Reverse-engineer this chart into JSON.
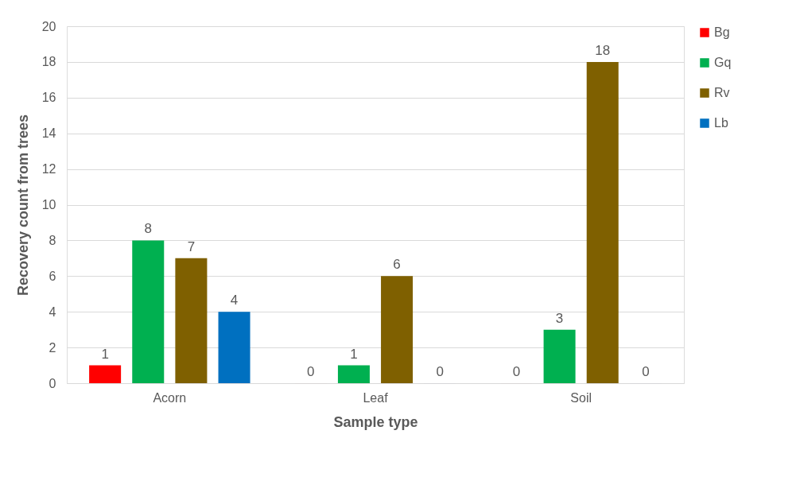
{
  "chart_data": {
    "type": "bar",
    "xlabel": "Sample type",
    "ylabel": "Recovery count from trees",
    "categories": [
      "Acorn",
      "Leaf",
      "Soil"
    ],
    "series": [
      {
        "name": "Bg",
        "color": "#ff0000",
        "values": [
          1,
          0,
          0
        ]
      },
      {
        "name": "Gq",
        "color": "#00b050",
        "values": [
          8,
          1,
          3
        ]
      },
      {
        "name": "Rv",
        "color": "#7f6000",
        "values": [
          7,
          6,
          18
        ]
      },
      {
        "name": "Lb",
        "color": "#0070c0",
        "values": [
          4,
          0,
          0
        ]
      }
    ],
    "ylim": [
      0,
      20
    ],
    "yticks": [
      0,
      2,
      4,
      6,
      8,
      10,
      12,
      14,
      16,
      18,
      20
    ],
    "grid": "y",
    "legend": "right",
    "data_labels": true
  }
}
